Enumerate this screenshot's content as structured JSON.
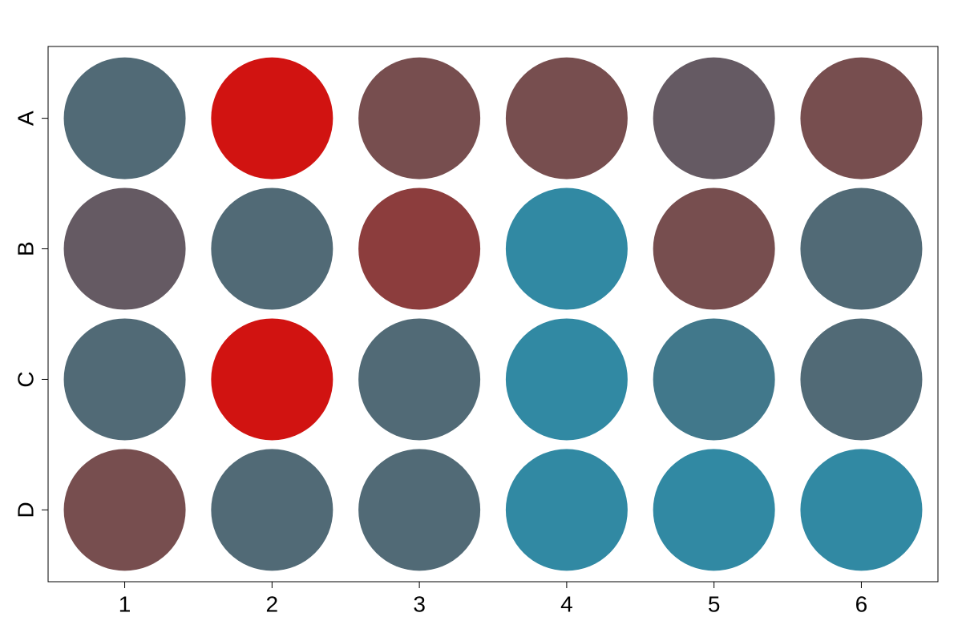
{
  "chart_data": {
    "type": "scatter",
    "title": "",
    "xlabel": "",
    "ylabel": "",
    "grid": false,
    "xlim": [
      0.48,
      6.52
    ],
    "ylim": [
      0.45,
      4.55
    ],
    "x_categories": [
      "1",
      "2",
      "3",
      "4",
      "5",
      "6"
    ],
    "y_categories": [
      "A",
      "B",
      "C",
      "D"
    ],
    "wells": [
      {
        "row": "A",
        "col": "1",
        "color": "#516a76"
      },
      {
        "row": "A",
        "col": "2",
        "color": "#d11311"
      },
      {
        "row": "A",
        "col": "3",
        "color": "#774e4f"
      },
      {
        "row": "A",
        "col": "4",
        "color": "#774e4f"
      },
      {
        "row": "A",
        "col": "5",
        "color": "#655a63"
      },
      {
        "row": "A",
        "col": "6",
        "color": "#774e4f"
      },
      {
        "row": "B",
        "col": "1",
        "color": "#655a63"
      },
      {
        "row": "B",
        "col": "2",
        "color": "#516a76"
      },
      {
        "row": "B",
        "col": "3",
        "color": "#8c3d3d"
      },
      {
        "row": "B",
        "col": "4",
        "color": "#3189a3"
      },
      {
        "row": "B",
        "col": "5",
        "color": "#774e4f"
      },
      {
        "row": "B",
        "col": "6",
        "color": "#516a76"
      },
      {
        "row": "C",
        "col": "1",
        "color": "#516a76"
      },
      {
        "row": "C",
        "col": "2",
        "color": "#d11311"
      },
      {
        "row": "C",
        "col": "3",
        "color": "#516a76"
      },
      {
        "row": "C",
        "col": "4",
        "color": "#3189a3"
      },
      {
        "row": "C",
        "col": "5",
        "color": "#41788b"
      },
      {
        "row": "C",
        "col": "6",
        "color": "#516a76"
      },
      {
        "row": "D",
        "col": "1",
        "color": "#774e4f"
      },
      {
        "row": "D",
        "col": "2",
        "color": "#516a76"
      },
      {
        "row": "D",
        "col": "3",
        "color": "#516a76"
      },
      {
        "row": "D",
        "col": "4",
        "color": "#3189a3"
      },
      {
        "row": "D",
        "col": "5",
        "color": "#3189a3"
      },
      {
        "row": "D",
        "col": "6",
        "color": "#3189a3"
      }
    ]
  }
}
